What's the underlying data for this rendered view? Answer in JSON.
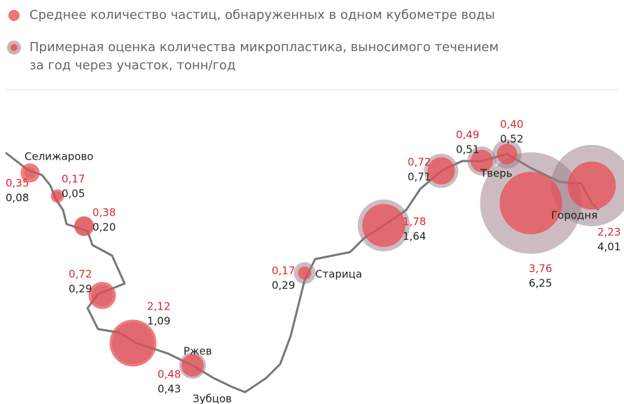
{
  "legend": {
    "particles": "Среднее количество частиц, обнаруженных в одном кубометре воды",
    "tonnes_line1": "Примерная оценка количества микропластика, выносимого течением",
    "tonnes_line2": "за год через участок, тонн/год"
  },
  "cities": [
    "Селижарово",
    "Ржев",
    "Зубцов",
    "Старица",
    "Тверь",
    "Городня"
  ],
  "points": [
    {
      "particles": {
        "value": 0.35,
        "label": "0,35"
      },
      "tonnes": {
        "value": 0.08,
        "label": "0,08"
      }
    },
    {
      "particles": {
        "value": 0.17,
        "label": "0,17"
      },
      "tonnes": {
        "value": 0.05,
        "label": "0,05"
      }
    },
    {
      "particles": {
        "value": 0.38,
        "label": "0,38"
      },
      "tonnes": {
        "value": 0.2,
        "label": "0,20"
      }
    },
    {
      "particles": {
        "value": 0.72,
        "label": "0,72"
      },
      "tonnes": {
        "value": 0.29,
        "label": "0,29"
      }
    },
    {
      "particles": {
        "value": 2.12,
        "label": "2,12"
      },
      "tonnes": {
        "value": 1.09,
        "label": "1,09"
      }
    },
    {
      "particles": {
        "value": 0.48,
        "label": "0,48"
      },
      "tonnes": {
        "value": 0.43,
        "label": "0,43"
      }
    },
    {
      "particles": {
        "value": 0.17,
        "label": "0,17"
      },
      "tonnes": {
        "value": 0.29,
        "label": "0,29"
      }
    },
    {
      "particles": {
        "value": 1.78,
        "label": "1,78"
      },
      "tonnes": {
        "value": 1.64,
        "label": "1,64"
      }
    },
    {
      "particles": {
        "value": 0.72,
        "label": "0,72"
      },
      "tonnes": {
        "value": 0.71,
        "label": "0,71"
      }
    },
    {
      "particles": {
        "value": 0.49,
        "label": "0,49"
      },
      "tonnes": {
        "value": 0.51,
        "label": "0,51"
      }
    },
    {
      "particles": {
        "value": 0.4,
        "label": "0,40"
      },
      "tonnes": {
        "value": 0.52,
        "label": "0,52"
      }
    },
    {
      "particles": {
        "value": 3.76,
        "label": "3,76"
      },
      "tonnes": {
        "value": 6.25,
        "label": "6,25"
      }
    },
    {
      "particles": {
        "value": 2.23,
        "label": "2,23"
      },
      "tonnes": {
        "value": 4.01,
        "label": "4,01"
      }
    }
  ]
}
